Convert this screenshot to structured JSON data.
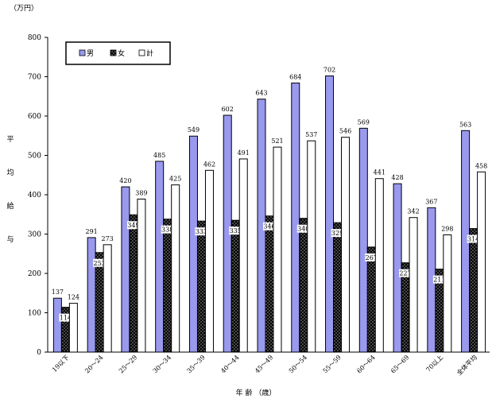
{
  "chart_data": {
    "type": "bar",
    "unit": "（万円）",
    "ylabel": "平均給与",
    "xlabel": "年 齢 （歳）",
    "ylim": [
      0,
      800
    ],
    "yticks": [
      0,
      100,
      200,
      300,
      400,
      500,
      600,
      700,
      800
    ],
    "grid": false,
    "legend_position": "top-left",
    "categories": [
      "19以下",
      "20～24",
      "25～29",
      "30～34",
      "35～39",
      "40～44",
      "45～49",
      "50～54",
      "55～59",
      "60～64",
      "65～69",
      "70以上",
      "全体平均"
    ],
    "series": [
      {
        "name": "男",
        "values": [
          137,
          291,
          420,
          485,
          549,
          602,
          643,
          684,
          702,
          569,
          428,
          367,
          563
        ]
      },
      {
        "name": "女",
        "values": [
          114,
          253,
          349,
          338,
          333,
          335,
          346,
          340,
          329,
          267,
          227,
          211,
          314
        ]
      },
      {
        "name": "計",
        "values": [
          124,
          273,
          389,
          425,
          462,
          491,
          521,
          537,
          546,
          441,
          342,
          298,
          458
        ]
      }
    ],
    "colors": {
      "男": "#9999ee",
      "女": "#000000",
      "計": "#ffffff"
    }
  }
}
